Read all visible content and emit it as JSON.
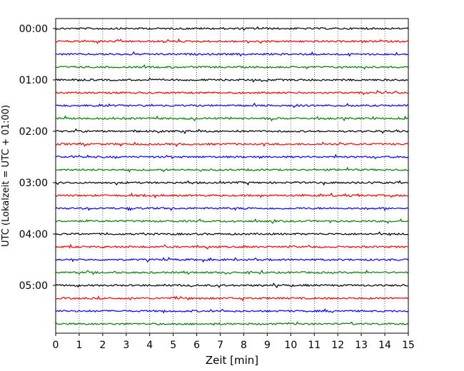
{
  "chart_data": {
    "type": "line",
    "title": "",
    "xlabel": "Zeit  [min]",
    "ylabel": "UTC (Lokalzeit = UTC + 01:00)",
    "xlim": [
      0,
      15
    ],
    "x_ticks": [
      0,
      1,
      2,
      3,
      4,
      5,
      6,
      7,
      8,
      9,
      10,
      11,
      12,
      13,
      14,
      15
    ],
    "y_tick_labels": [
      "00:00",
      "01:00",
      "02:00",
      "03:00",
      "04:00",
      "05:00"
    ],
    "trace_interval_min": 15,
    "trace_start": "00:00",
    "trace_count": 24,
    "trace_colors": [
      "#000000",
      "#ff0000",
      "#0000ff",
      "#008000"
    ],
    "grid": "vertical dotted at each minute"
  }
}
